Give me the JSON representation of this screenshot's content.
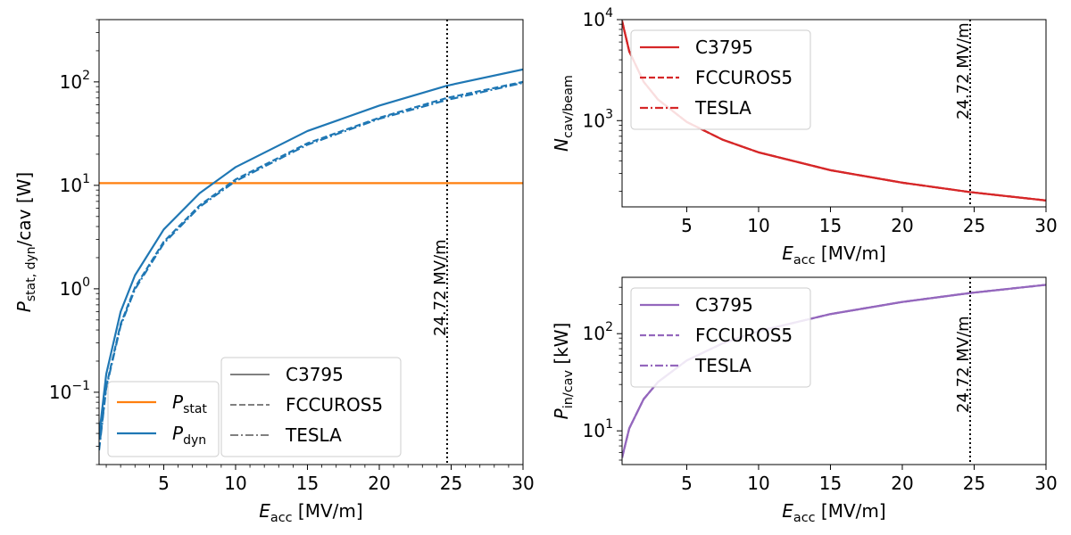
{
  "chart_data": [
    {
      "type": "line",
      "id": "left",
      "xlabel": "E_acc [MV/m]",
      "ylabel": "P_stat,dyn/cav [W]",
      "xlim": [
        0.5,
        30
      ],
      "ylim": [
        0.02,
        400
      ],
      "yscale": "log",
      "xticks": [
        5,
        10,
        15,
        20,
        25,
        30
      ],
      "yticks": [
        {
          "v": 0.1,
          "b": "10",
          "e": "−1"
        },
        {
          "v": 1,
          "b": "10",
          "e": "0"
        },
        {
          "v": 10,
          "b": "10",
          "e": "1"
        },
        {
          "v": 100,
          "b": "10",
          "e": "2"
        }
      ],
      "vline": {
        "x": 24.72,
        "label": "24.72 MV/m"
      },
      "series": [
        {
          "name": "P_stat",
          "group": "stat",
          "style": "solid",
          "color": "#ff7f0e",
          "x": [
            0.5,
            30
          ],
          "y": [
            10.5,
            10.5
          ]
        },
        {
          "name": "C3795",
          "group": "dyn",
          "style": "solid",
          "color": "#1f77b4",
          "x": [
            0.5,
            1,
            2,
            3,
            5,
            7.5,
            10,
            15,
            20,
            24.72,
            30
          ],
          "y": [
            0.0375,
            0.15,
            0.6,
            1.35,
            3.75,
            8.4,
            15,
            33.5,
            59,
            92,
            132
          ]
        },
        {
          "name": "FCCUROS5",
          "group": "dyn",
          "style": "dashed",
          "color": "#1f77b4",
          "x": [
            0.5,
            1,
            2,
            3,
            5,
            7.5,
            10,
            15,
            20,
            24.72,
            30
          ],
          "y": [
            0.0285,
            0.114,
            0.456,
            1.03,
            2.85,
            6.4,
            11.4,
            25.5,
            45,
            70,
            100
          ]
        },
        {
          "name": "TESLA",
          "group": "dyn",
          "style": "dashdot",
          "color": "#1f77b4",
          "x": [
            0.5,
            1,
            2,
            3,
            5,
            7.5,
            10,
            15,
            20,
            24.72,
            30
          ],
          "y": [
            0.0275,
            0.11,
            0.44,
            0.99,
            2.75,
            6.2,
            11,
            24.7,
            44,
            67,
            98
          ]
        }
      ],
      "legend1": [
        {
          "base": "P",
          "sub": "stat",
          "color": "#ff7f0e"
        },
        {
          "base": "P",
          "sub": "dyn",
          "color": "#1f77b4"
        }
      ],
      "legend2": [
        {
          "label": "C3795",
          "style": "solid"
        },
        {
          "label": "FCCUROS5",
          "style": "dashed"
        },
        {
          "label": "TESLA",
          "style": "dashdot"
        }
      ]
    },
    {
      "type": "line",
      "id": "top-right",
      "xlabel": "E_acc [MV/m]",
      "ylabel": "N_cav/beam",
      "xlim": [
        0.5,
        30
      ],
      "ylim": [
        140,
        10000
      ],
      "yscale": "log",
      "xticks": [
        5,
        10,
        15,
        20,
        25,
        30
      ],
      "yticks": [
        {
          "v": 1000,
          "b": "10",
          "e": "3"
        },
        {
          "v": 10000,
          "b": "10",
          "e": "4"
        }
      ],
      "vline": {
        "x": 24.72,
        "label": "24.72 MV/m"
      },
      "series": [
        {
          "name": "C3795",
          "style": "solid",
          "color": "#d62728",
          "x": [
            0.5,
            1,
            2,
            3,
            5,
            7.5,
            10,
            15,
            20,
            24.72,
            30
          ],
          "y": [
            9700,
            4850,
            2425,
            1617,
            970,
            647,
            485,
            323,
            243,
            196,
            162
          ]
        },
        {
          "name": "FCCUROS5",
          "style": "dashed",
          "color": "#d62728",
          "x": [
            0.5,
            1,
            2,
            3,
            5,
            7.5,
            10,
            15,
            20,
            24.72,
            30
          ],
          "y": [
            9700,
            4850,
            2425,
            1617,
            970,
            647,
            485,
            323,
            243,
            196,
            162
          ]
        },
        {
          "name": "TESLA",
          "style": "dashdot",
          "color": "#d62728",
          "x": [
            0.5,
            1,
            2,
            3,
            5,
            7.5,
            10,
            15,
            20,
            24.72,
            30
          ],
          "y": [
            9700,
            4850,
            2425,
            1617,
            970,
            647,
            485,
            323,
            243,
            196,
            162
          ]
        }
      ]
    },
    {
      "type": "line",
      "id": "bottom-right",
      "xlabel": "E_acc [MV/m]",
      "ylabel": "P_in/cav [kW]",
      "xlim": [
        0.5,
        30
      ],
      "ylim": [
        4.5,
        380
      ],
      "yscale": "log",
      "xticks": [
        5,
        10,
        15,
        20,
        25,
        30
      ],
      "yticks": [
        {
          "v": 10,
          "b": "10",
          "e": "1"
        },
        {
          "v": 100,
          "b": "10",
          "e": "2"
        }
      ],
      "vline": {
        "x": 24.72,
        "label": "24.72 MV/m"
      },
      "series": [
        {
          "name": "C3795",
          "style": "solid",
          "color": "#9467bd",
          "x": [
            0.5,
            1,
            2,
            3,
            5,
            7.5,
            10,
            15,
            20,
            24.72,
            30
          ],
          "y": [
            5.3,
            10.6,
            21.2,
            31.8,
            53,
            79.5,
            106,
            159,
            212,
            262,
            318
          ]
        },
        {
          "name": "FCCUROS5",
          "style": "dashed",
          "color": "#9467bd",
          "x": [
            0.5,
            1,
            2,
            3,
            5,
            7.5,
            10,
            15,
            20,
            24.72,
            30
          ],
          "y": [
            5.3,
            10.6,
            21.2,
            31.8,
            53,
            79.5,
            106,
            159,
            212,
            262,
            318
          ]
        },
        {
          "name": "TESLA",
          "style": "dashdot",
          "color": "#9467bd",
          "x": [
            0.5,
            1,
            2,
            3,
            5,
            7.5,
            10,
            15,
            20,
            24.72,
            30
          ],
          "y": [
            5.3,
            10.6,
            21.2,
            31.8,
            53,
            79.5,
            106,
            159,
            212,
            262,
            318
          ]
        }
      ]
    }
  ]
}
